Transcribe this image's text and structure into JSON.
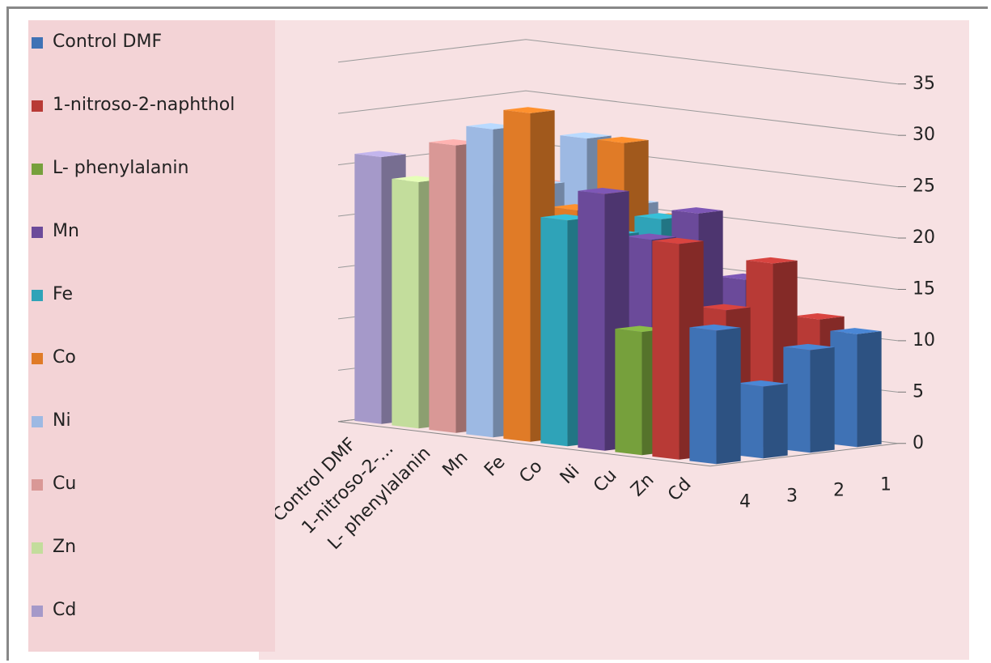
{
  "chart_data": {
    "type": "bar3d",
    "categories": [
      "1",
      "2",
      "3",
      "4"
    ],
    "series": [
      {
        "name": "Control  DMF",
        "color": "#3f72b5",
        "values": [
          11,
          10,
          7,
          13
        ]
      },
      {
        "name": "1-nitroso-2-naphthol",
        "color": "#b83a36",
        "values": [
          12,
          18,
          14,
          21
        ]
      },
      {
        "name": "L- phenylalanin",
        "color": "#76a03c",
        "values": [
          10,
          11,
          9,
          12
        ]
      },
      {
        "name": "Mn",
        "color": "#6b4a9a",
        "values": [
          15,
          22,
          20,
          25
        ]
      },
      {
        "name": "Fe",
        "color": "#2fa3b8",
        "values": [
          13,
          21,
          20,
          22
        ]
      },
      {
        "name": "Co",
        "color": "#e07b27",
        "values": [
          20,
          28,
          22,
          32
        ]
      },
      {
        "name": "Ni",
        "color": "#9db9e3",
        "values": [
          21,
          28,
          24,
          30
        ]
      },
      {
        "name": "Cu",
        "color": "#d99896",
        "values": [
          20,
          23,
          22,
          28
        ]
      },
      {
        "name": "Zn",
        "color": "#c3dd9c",
        "values": [
          18,
          20,
          19,
          24
        ]
      },
      {
        "name": "Cd",
        "color": "#a599c9",
        "values": [
          19,
          22,
          21,
          26
        ]
      }
    ],
    "series_axis_labels": [
      "Control  DMF",
      "1-nitroso-2-...",
      "L- phenylalanin",
      "Mn",
      "Fe",
      "Co",
      "Ni",
      "Cu",
      "Zn",
      "Cd"
    ],
    "ylim": [
      0,
      35
    ],
    "yticks": [
      0,
      5,
      10,
      15,
      20,
      25,
      30,
      35
    ],
    "grid": true,
    "legend": "left"
  }
}
